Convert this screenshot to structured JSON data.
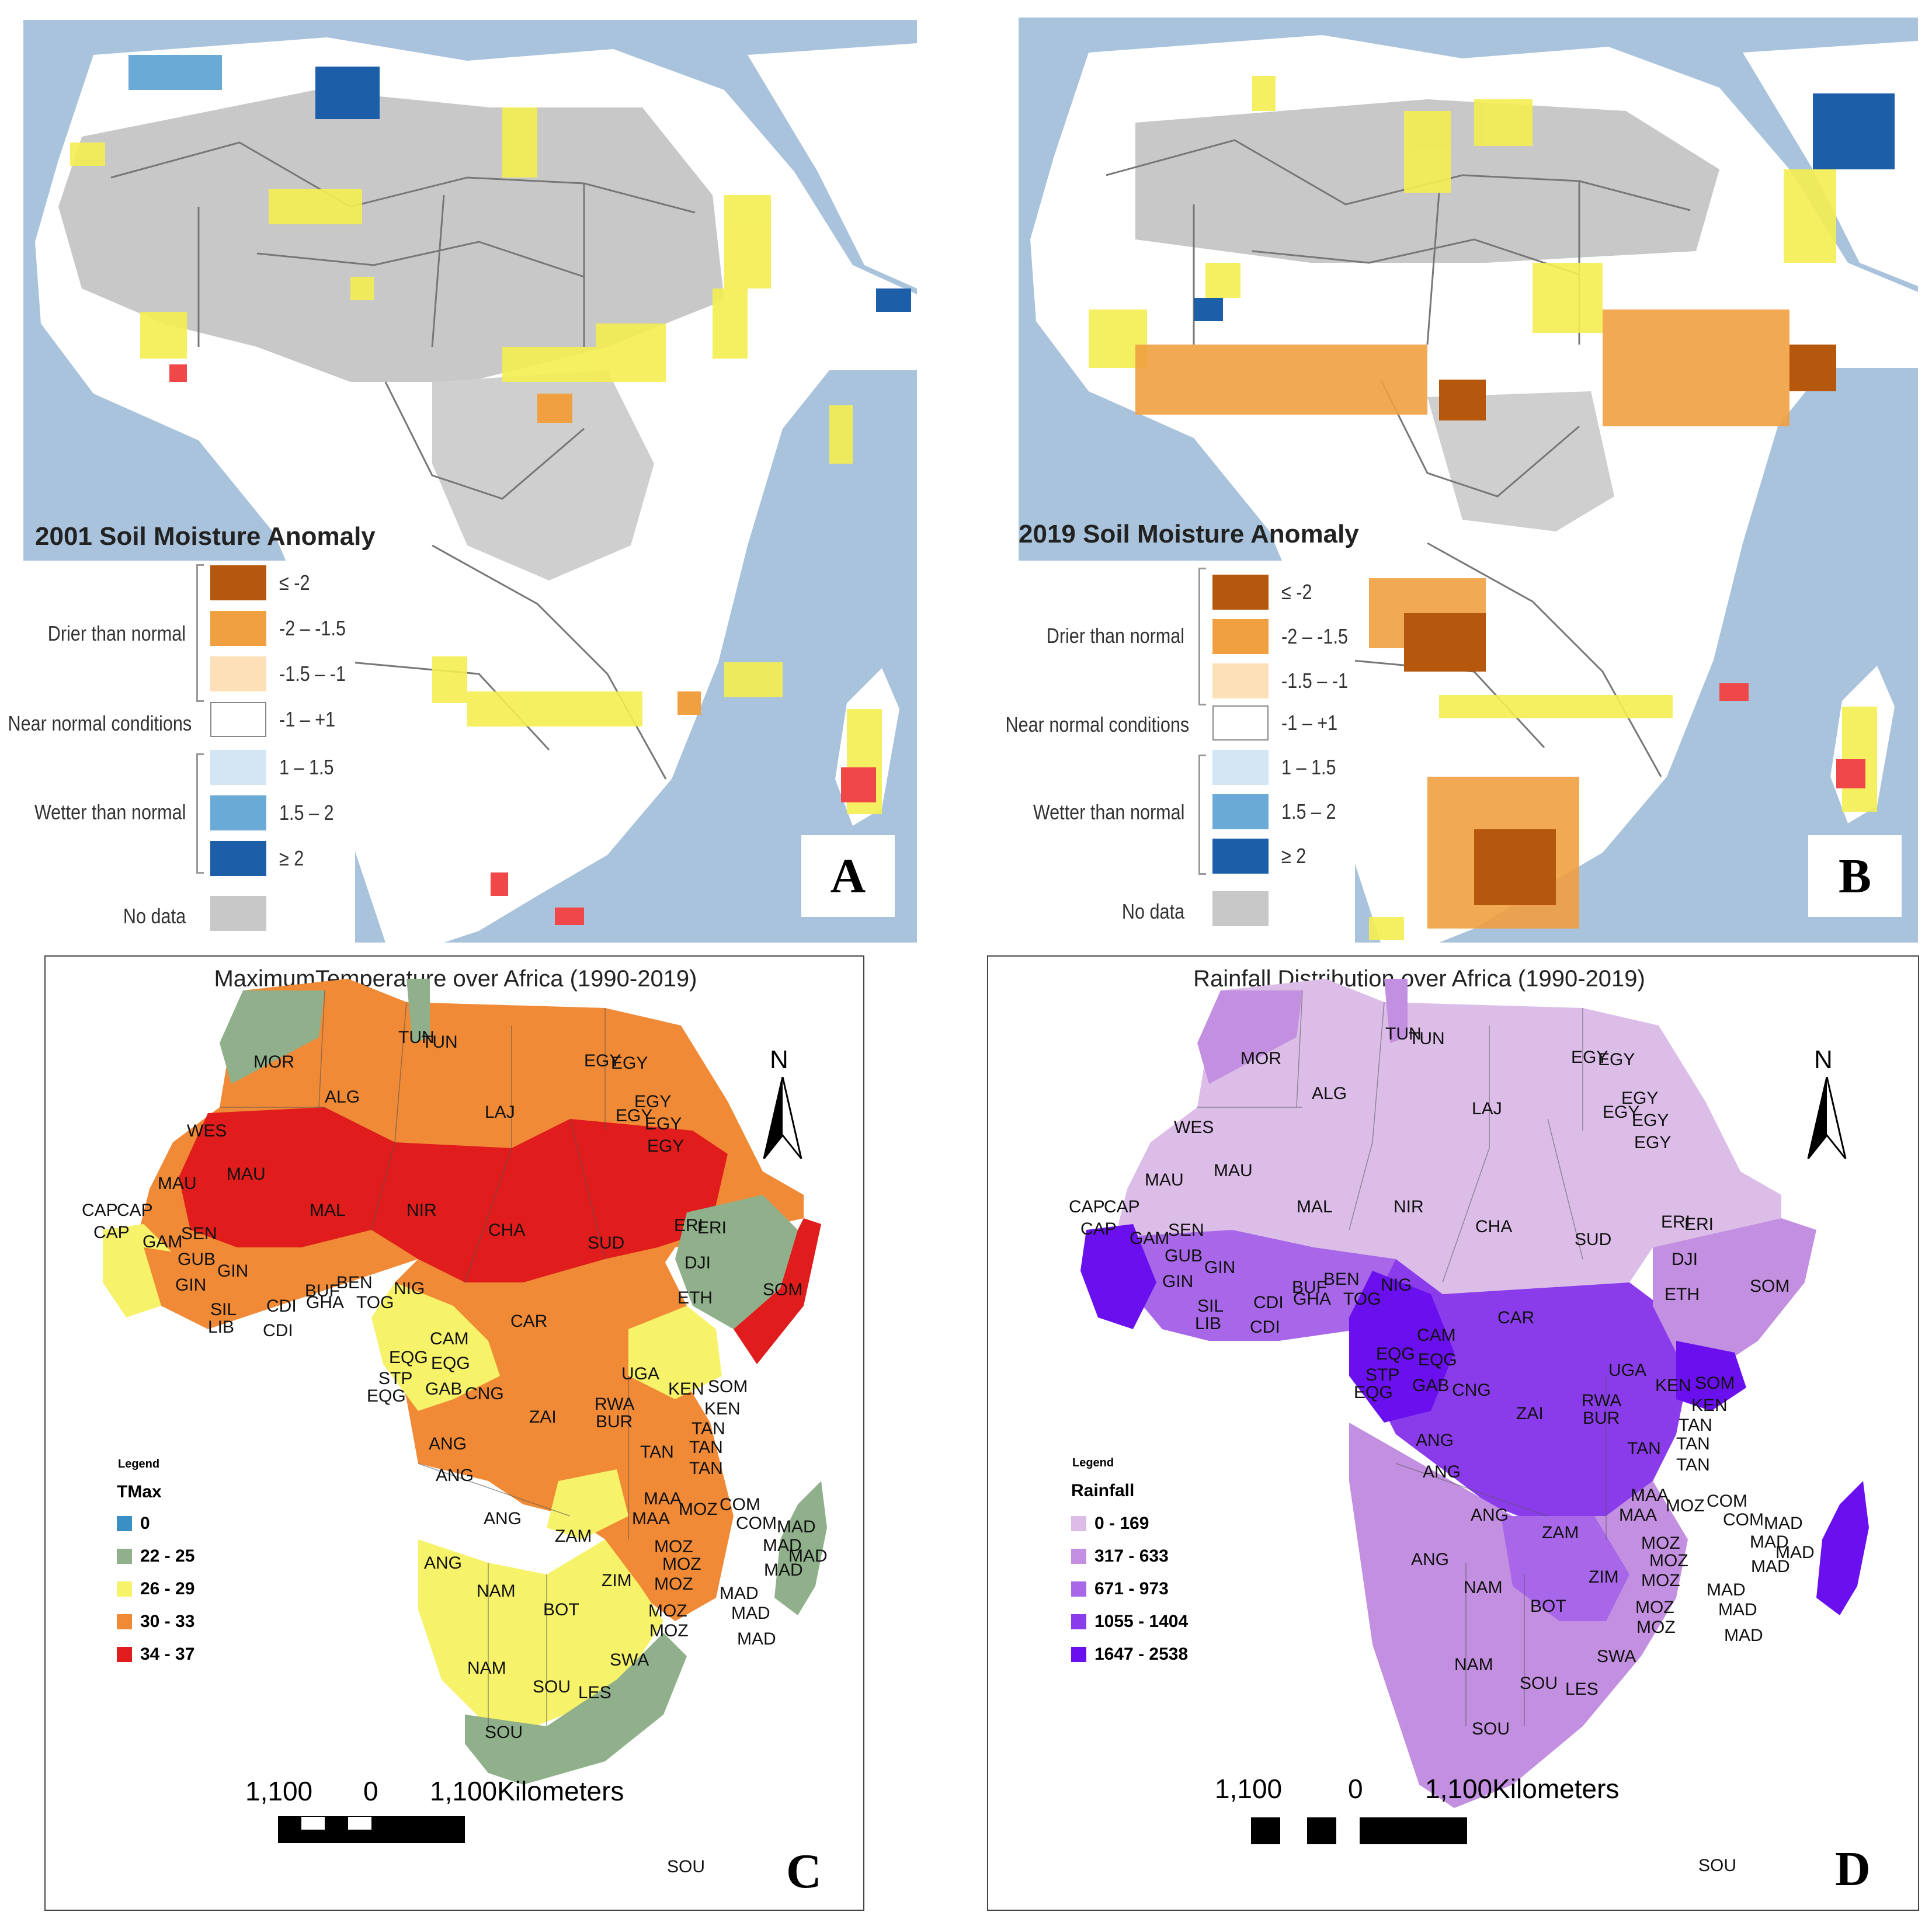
{
  "panel_a": {
    "title": "2001 Soil Moisture Anomaly",
    "letter": "A"
  },
  "panel_b": {
    "title": "2019 Soil Moisture Anomaly",
    "letter": "B"
  },
  "soil_legend": {
    "groups": {
      "drier": "Drier than normal",
      "near": "Near normal conditions",
      "wetter": "Wetter than normal",
      "nodata": "No data"
    },
    "items": [
      {
        "label": "≤ -2",
        "color": "#b5580d"
      },
      {
        "label": "-2 – -1.5",
        "color": "#f0a040"
      },
      {
        "label": "-1.5 – -1",
        "color": "#fde0b8"
      },
      {
        "label": "-1 – +1",
        "color": "#ffffff"
      },
      {
        "label": "1 – 1.5",
        "color": "#d4e6f4"
      },
      {
        "label": "1.5 – 2",
        "color": "#6aaad6"
      },
      {
        "label": "≥ 2",
        "color": "#1c5ea8"
      },
      {
        "label": "",
        "color": "#c8c8c8"
      }
    ]
  },
  "panel_c": {
    "title": "MaximumTemperature over Africa (1990-2019)",
    "letter": "C",
    "north": "N",
    "legend_head": "Legend",
    "legend_title": "TMax",
    "legend": [
      {
        "label": "0",
        "color": "#3a8fc4"
      },
      {
        "label": "22 - 25",
        "color": "#8fb08a"
      },
      {
        "label": "26 - 29",
        "color": "#f6f36a"
      },
      {
        "label": "30 - 33",
        "color": "#f08a36"
      },
      {
        "label": "34 - 37",
        "color": "#e01c1c"
      }
    ],
    "scale": {
      "left": "1,100",
      "mid": "0",
      "right": "1,100Kilometers"
    },
    "sou_label": "SOU"
  },
  "panel_d": {
    "title": "Rainfall Distribution over Africa (1990-2019)",
    "letter": "D",
    "north": "N",
    "legend_head": "Legend",
    "legend_title": "Rainfall",
    "legend": [
      {
        "label": "0 - 169",
        "color": "#dcbde8"
      },
      {
        "label": "317 - 633",
        "color": "#c38fe0"
      },
      {
        "label": "671 - 973",
        "color": "#a767e8"
      },
      {
        "label": "1055 - 1404",
        "color": "#8a3ceb"
      },
      {
        "label": "1647 - 2538",
        "color": "#6a10ee"
      }
    ],
    "scale": {
      "left": "1,100",
      "mid": "0",
      "right": "1,100Kilometers"
    },
    "sou_label": "SOU"
  },
  "country_labels": [
    "MOR",
    "TUN",
    "TUN",
    "ALG",
    "LAJ",
    "EGY",
    "EGY",
    "EGY",
    "EGY",
    "EGY",
    "EGY",
    "WES",
    "MAU",
    "MAU",
    "MAL",
    "NIR",
    "CHA",
    "SUD",
    "ERI",
    "ERI",
    "DJI",
    "CAP",
    "CAP",
    "CAP",
    "GAM",
    "SEN",
    "GUB",
    "GIN",
    "GIN",
    "BUF",
    "BEN",
    "GHA",
    "TOG",
    "NIG",
    "ETH",
    "SOM",
    "SIL",
    "LIB",
    "CDI",
    "CDI",
    "CAR",
    "CAM",
    "EQG",
    "EQG",
    "STP",
    "EQG",
    "GAB",
    "CNG",
    "UGA",
    "KEN",
    "SOM",
    "KEN",
    "RWA",
    "BUR",
    "ZAI",
    "TAN",
    "TAN",
    "TAN",
    "TAN",
    "ANG",
    "ANG",
    "ANG",
    "ANG",
    "MAA",
    "MAA",
    "MOZ",
    "COM",
    "COM",
    "MAD",
    "MAD",
    "MAD",
    "MAD",
    "MAD",
    "MAD",
    "MAD",
    "MOZ",
    "MOZ",
    "ZAM",
    "ZIM",
    "MOZ",
    "MOZ",
    "MOZ",
    "NAM",
    "BOT",
    "SWA",
    "SOU",
    "LES",
    "NAM",
    "SOU"
  ]
}
